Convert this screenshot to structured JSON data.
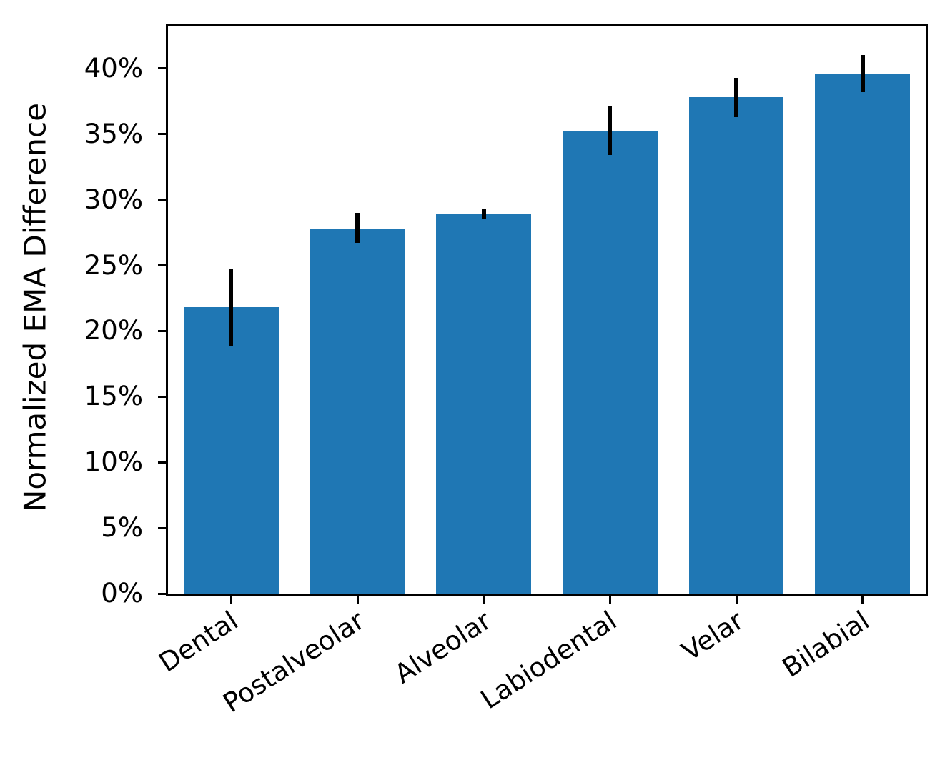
{
  "chart_data": {
    "type": "bar",
    "title": "",
    "xlabel": "",
    "ylabel": "Normalized EMA Difference",
    "categories": [
      "Dental",
      "Postalveolar",
      "Alveolar",
      "Labiodental",
      "Velar",
      "Bilabial"
    ],
    "values": [
      21.8,
      27.8,
      28.9,
      35.2,
      37.8,
      39.6
    ],
    "error_low": [
      18.9,
      26.7,
      28.5,
      33.4,
      36.3,
      38.2
    ],
    "error_high": [
      24.7,
      29.0,
      29.3,
      37.1,
      39.3,
      41.0
    ],
    "value_unit": "%",
    "ylim": [
      0,
      43.2
    ],
    "yticks": [
      0,
      5,
      10,
      15,
      20,
      25,
      30,
      35,
      40
    ],
    "ytick_labels": [
      "0%",
      "5%",
      "10%",
      "15%",
      "20%",
      "25%",
      "30%",
      "35%",
      "40%"
    ],
    "bar_color": "#1f77b4",
    "error_color": "#000000",
    "grid": false,
    "legend_position": "none"
  }
}
